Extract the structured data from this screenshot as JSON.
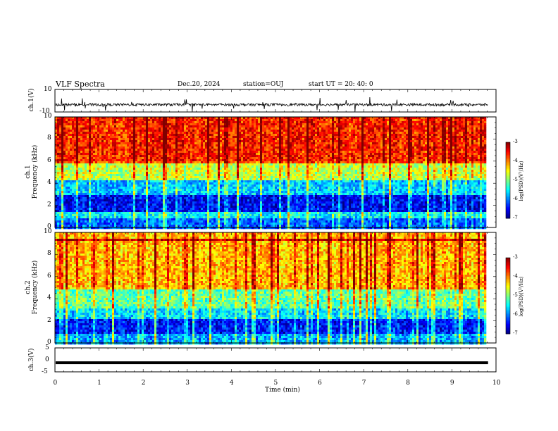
{
  "header": {
    "title": "VLF Spectra",
    "date": "Dec.20, 2024",
    "station": "station=OUJ",
    "start": "start  UT  =   20: 40: 0"
  },
  "chart_data": [
    {
      "type": "line",
      "panel": "ch1-waveform",
      "ylabel": "ch.1(V)",
      "ylim": [
        -10,
        10
      ],
      "yticks": [
        "10",
        "-10"
      ],
      "baseline": -3.5,
      "note_values": "noisy waveform around baseline"
    },
    {
      "type": "heatmap",
      "panel": "ch1-spectrogram",
      "ylabel_line1": "ch.1",
      "ylabel_line2": "Frequency (kHz)",
      "ylim": [
        0,
        10
      ],
      "yticks": [
        "10",
        "8",
        "6",
        "4",
        "2",
        "0"
      ],
      "colorbar": {
        "label": "log(PSD)(V²/Hz)",
        "range": [
          -7,
          -3
        ],
        "ticks": [
          "-3",
          "-4",
          "-5",
          "-6",
          "-7"
        ]
      },
      "bands_khz": [
        {
          "from": 0,
          "to": 1.0,
          "level": -6.2
        },
        {
          "from": 1.0,
          "to": 1.5,
          "level": -5.6
        },
        {
          "from": 1.5,
          "to": 3.0,
          "level": -6.6
        },
        {
          "from": 3.0,
          "to": 4.5,
          "level": -5.8
        },
        {
          "from": 4.5,
          "to": 6.0,
          "level": -4.8
        },
        {
          "from": 6.0,
          "to": 10.0,
          "level": -3.7
        }
      ]
    },
    {
      "type": "heatmap",
      "panel": "ch2-spectrogram",
      "ylabel_line1": "ch.2",
      "ylabel_line2": "Frequency (kHz)",
      "ylim": [
        0,
        10
      ],
      "yticks": [
        "10",
        "8",
        "6",
        "4",
        "2",
        "0"
      ],
      "colorbar": {
        "label": "log(PSD)(V²/Hz)",
        "range": [
          -7,
          -3
        ],
        "ticks": [
          "-3",
          "-4",
          "-5",
          "-6",
          "-7"
        ]
      },
      "bands_khz": [
        {
          "from": 0,
          "to": 1.0,
          "level": -5.9
        },
        {
          "from": 1.0,
          "to": 2.2,
          "level": -6.5
        },
        {
          "from": 2.2,
          "to": 3.2,
          "level": -5.7
        },
        {
          "from": 3.2,
          "to": 5.0,
          "level": -5.2
        },
        {
          "from": 5.0,
          "to": 10.0,
          "level": -4.3
        }
      ]
    },
    {
      "type": "line",
      "panel": "ch3-waveform",
      "ylabel": "ch.3(V)",
      "ylim": [
        -5,
        5
      ],
      "yticks": [
        "5",
        "0",
        "-5"
      ],
      "values_const": -1.2,
      "xlabel": "Time (min)",
      "xlim": [
        0,
        10
      ],
      "xticks": [
        "0",
        "1",
        "2",
        "3",
        "4",
        "5",
        "6",
        "7",
        "8",
        "9",
        "10"
      ],
      "data_end": 9.82
    }
  ]
}
